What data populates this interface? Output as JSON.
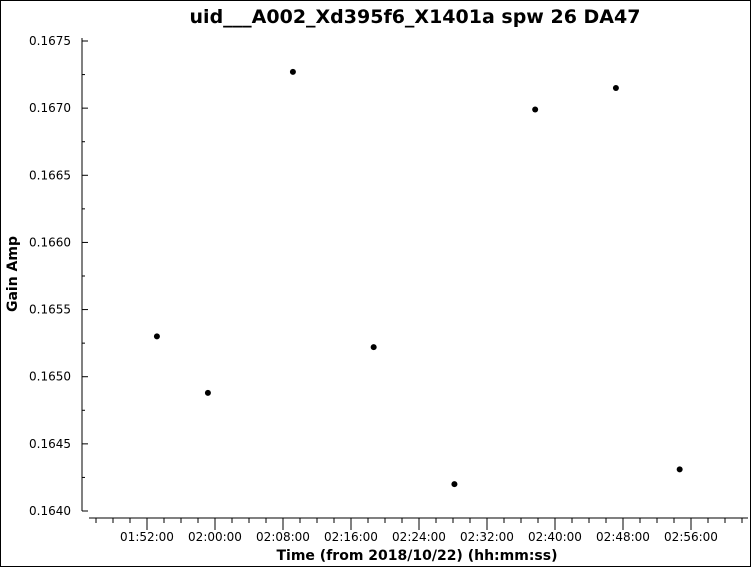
{
  "chart_data": {
    "type": "scatter",
    "title": "uid___A002_Xd395f6_X1401a spw 26 DA47",
    "xlabel": "Time (from 2018/10/22) (hh:mm:ss)",
    "ylabel": "Gain Amp",
    "x_type": "time",
    "xlim": [
      "01:45:30",
      "02:63:30"
    ],
    "x_ticks": [
      "01:52:00",
      "02:00:00",
      "02:08:00",
      "02:16:00",
      "02:24:00",
      "02:32:00",
      "02:40:00",
      "02:48:00",
      "02:56:00"
    ],
    "ylim": [
      0.164,
      0.1675
    ],
    "y_ticks": [
      "0.1640",
      "0.1645",
      "0.1650",
      "0.1655",
      "0.1660",
      "0.1665",
      "0.1670",
      "0.1675"
    ],
    "grid": false,
    "series": [
      {
        "color": "#000000",
        "points": [
          {
            "x": "01:53:10",
            "y": 0.1653
          },
          {
            "x": "01:59:10",
            "y": 0.16488
          },
          {
            "x": "02:09:10",
            "y": 0.16727
          },
          {
            "x": "02:18:40",
            "y": 0.16522
          },
          {
            "x": "02:28:10",
            "y": 0.1642
          },
          {
            "x": "02:37:40",
            "y": 0.16699
          },
          {
            "x": "02:47:10",
            "y": 0.16715
          },
          {
            "x": "02:54:40",
            "y": 0.16431
          }
        ]
      }
    ]
  }
}
